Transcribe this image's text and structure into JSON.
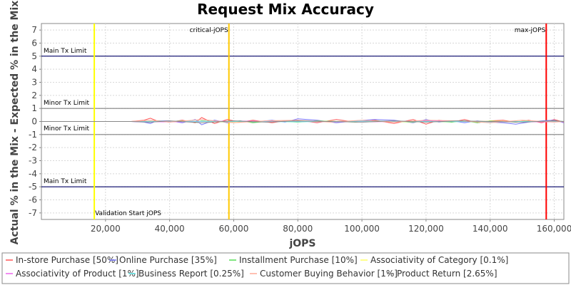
{
  "chart_data": {
    "type": "line",
    "title": "Request Mix Accuracy",
    "xlabel": "jOPS",
    "ylabel": "Actual % in the Mix - Expected % in the Mix",
    "xlim": [
      0,
      163000
    ],
    "ylim": [
      -7.5,
      7.5
    ],
    "x_ticks": [
      20000,
      40000,
      60000,
      80000,
      100000,
      120000,
      140000,
      160000
    ],
    "x_tick_labels": [
      "20,000",
      "40,000",
      "60,000",
      "80,000",
      "100,000",
      "120,000",
      "140,000",
      "160,000"
    ],
    "y_ticks": [
      7,
      6,
      5,
      4,
      3,
      2,
      1,
      0,
      -1,
      -2,
      -3,
      -4,
      -5,
      -6,
      -7
    ],
    "y_tick_labels": [
      "7",
      "6",
      "5",
      "4",
      "3",
      "2",
      "1",
      "0",
      "-1",
      "-2",
      "-3",
      "-4",
      "-5",
      "-6",
      "-7"
    ],
    "grid": true,
    "legend_position": "bottom",
    "horizontal_lines": [
      {
        "y": 5,
        "label": "Main Tx Limit",
        "color": "#000066"
      },
      {
        "y": 1,
        "label": "Minor Tx Limit",
        "color": "#808080"
      },
      {
        "y": -1,
        "label": "Minor Tx Limit",
        "color": "#808080"
      },
      {
        "y": -5,
        "label": "Main Tx Limit",
        "color": "#000066"
      }
    ],
    "vertical_lines": [
      {
        "x": 16500,
        "label": "Validation Start jOPS",
        "color": "#ffff00"
      },
      {
        "x": 58500,
        "label": "critical-jOPS",
        "color": "#ffc800"
      },
      {
        "x": 157500,
        "label": "max-jOPS",
        "color": "#ff0000"
      }
    ],
    "series": [
      {
        "name": "In-store Purchase [50%]",
        "color": "#ff5555",
        "x": [
          0,
          16500,
          28000,
          32000,
          34000,
          36000,
          40000,
          44000,
          48000,
          50000,
          54000,
          58000,
          62000,
          66000,
          72000,
          76000,
          80000,
          86000,
          92000,
          98000,
          104000,
          110000,
          116000,
          120000,
          124000,
          128000,
          132000,
          136000,
          140000,
          144000,
          148000,
          152000,
          156000,
          160000,
          163000
        ],
        "y": [
          0,
          0,
          0,
          0.1,
          0.25,
          0.05,
          -0.05,
          0.1,
          -0.1,
          0.3,
          -0.15,
          0.15,
          -0.05,
          0.1,
          -0.1,
          0.05,
          0.1,
          -0.1,
          0.15,
          -0.05,
          0.1,
          -0.15,
          0.15,
          -0.2,
          0.1,
          -0.05,
          0.15,
          -0.1,
          0.05,
          0.1,
          -0.05,
          0.1,
          -0.1,
          0.15,
          -0.05
        ]
      },
      {
        "name": "Online Purchase [35%]",
        "color": "#7777ff",
        "x": [
          0,
          16500,
          28000,
          32000,
          34000,
          36000,
          40000,
          44000,
          48000,
          50000,
          54000,
          58000,
          62000,
          66000,
          72000,
          76000,
          80000,
          86000,
          92000,
          98000,
          104000,
          110000,
          116000,
          120000,
          124000,
          128000,
          132000,
          136000,
          140000,
          144000,
          148000,
          152000,
          156000,
          160000,
          163000
        ],
        "y": [
          0,
          0,
          0,
          -0.05,
          -0.15,
          0.05,
          0.05,
          -0.1,
          0.15,
          -0.25,
          0.1,
          -0.1,
          0.05,
          -0.05,
          0.1,
          -0.05,
          0.2,
          0.1,
          -0.1,
          0.05,
          0.15,
          0.1,
          -0.1,
          0.15,
          -0.05,
          0.05,
          -0.1,
          0.05,
          -0.05,
          -0.1,
          -0.2,
          -0.05,
          0.05,
          0.1,
          -0.1
        ]
      },
      {
        "name": "Installment Purchase [10%]",
        "color": "#55dd55",
        "x": [
          0,
          16500,
          28000,
          32000,
          34000,
          36000,
          40000,
          44000,
          48000,
          50000,
          54000,
          58000,
          62000,
          66000,
          72000,
          76000,
          80000,
          86000,
          92000,
          98000,
          104000,
          110000,
          116000,
          120000,
          124000,
          128000,
          132000,
          136000,
          140000,
          144000,
          148000,
          152000,
          156000,
          160000,
          163000
        ],
        "y": [
          0,
          0,
          0,
          0,
          -0.05,
          0.05,
          0,
          0.05,
          -0.05,
          0.05,
          0,
          -0.05,
          0.05,
          -0.1,
          0.05,
          0,
          -0.05,
          0.05,
          0,
          -0.05,
          0.05,
          0,
          -0.05,
          0.05,
          0,
          -0.05,
          0.05,
          -0.1,
          0.05,
          0,
          -0.05,
          0.05,
          0,
          0.05,
          0
        ]
      },
      {
        "name": "Associativity of Category [0.1%]",
        "color": "#ffff66",
        "x": [
          0,
          16500,
          28000,
          40000,
          60000,
          80000,
          100000,
          120000,
          140000,
          160000,
          163000
        ],
        "y": [
          0,
          0,
          0,
          0.02,
          -0.02,
          0.02,
          0,
          -0.02,
          0.02,
          0,
          0
        ]
      },
      {
        "name": "Associativity of Product [1%]",
        "color": "#ee66ee",
        "x": [
          0,
          16500,
          28000,
          40000,
          60000,
          80000,
          100000,
          120000,
          140000,
          160000,
          163000
        ],
        "y": [
          0,
          0,
          0,
          -0.03,
          0.03,
          0,
          -0.03,
          0.03,
          0,
          -0.03,
          0
        ]
      },
      {
        "name": "Business Report [0.25%]",
        "color": "#66eeee",
        "x": [
          0,
          16500,
          28000,
          40000,
          60000,
          80000,
          100000,
          120000,
          140000,
          160000,
          163000
        ],
        "y": [
          0,
          0,
          0,
          0.02,
          0,
          -0.02,
          0.02,
          0,
          -0.02,
          0.02,
          0
        ]
      },
      {
        "name": "Customer Buying Behavior [1%]",
        "color": "#ffaa99",
        "x": [
          0,
          16500,
          28000,
          34000,
          40000,
          50000,
          60000,
          70000,
          80000,
          90000,
          100000,
          110000,
          120000,
          130000,
          140000,
          150000,
          160000,
          163000
        ],
        "y": [
          0,
          0,
          0,
          0.1,
          -0.05,
          0.15,
          -0.1,
          0.05,
          0.1,
          -0.05,
          0.1,
          -0.05,
          0.1,
          0.05,
          -0.1,
          0.1,
          -0.05,
          0
        ]
      },
      {
        "name": "Product Return [2.65%]",
        "color": "#888888",
        "x": [
          0,
          16500,
          28000,
          34000,
          40000,
          50000,
          60000,
          70000,
          80000,
          90000,
          100000,
          110000,
          120000,
          130000,
          140000,
          150000,
          160000,
          163000
        ],
        "y": [
          0,
          0,
          0,
          -0.05,
          0.05,
          -0.1,
          0.05,
          -0.05,
          0.05,
          0,
          -0.05,
          0.05,
          -0.05,
          0.05,
          0,
          -0.05,
          0.05,
          0
        ]
      }
    ]
  }
}
